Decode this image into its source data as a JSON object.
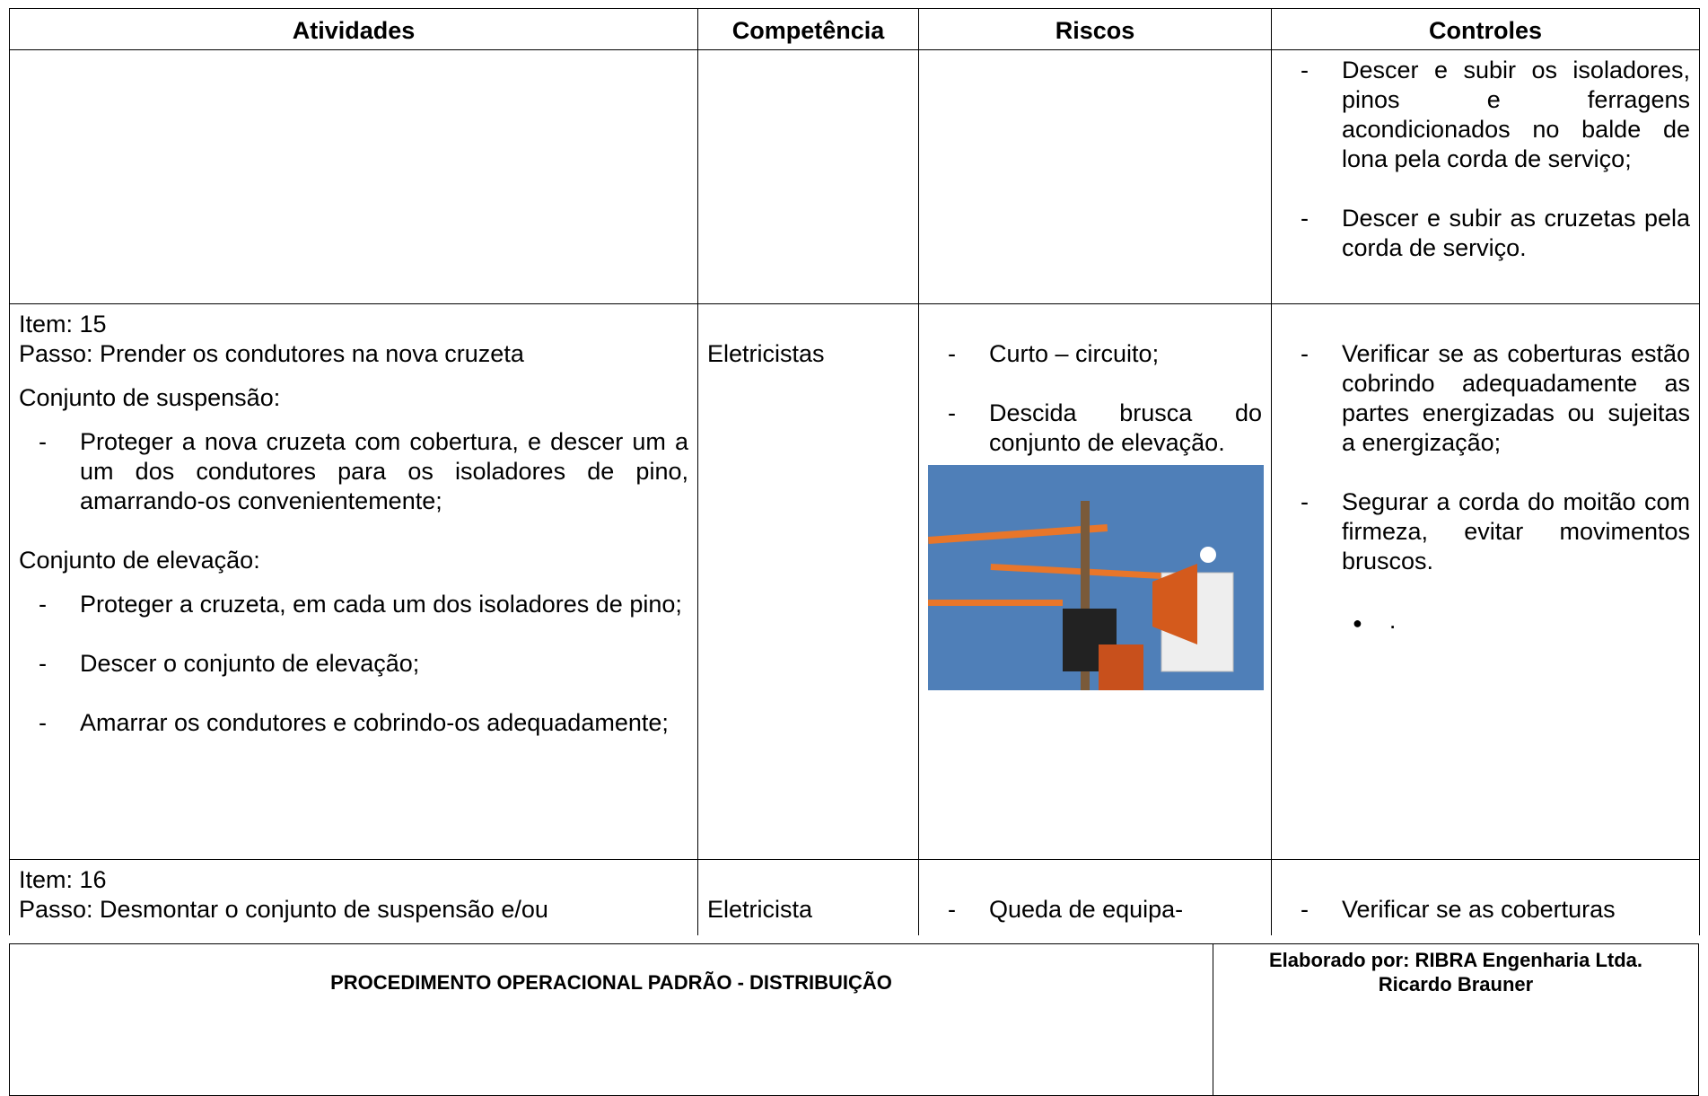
{
  "table": {
    "header": [
      "Atividades",
      "Competência",
      "Riscos",
      "Controles"
    ],
    "rows": [
      {
        "controles": [
          "Descer e subir os isoladores, pinos e ferragens acondicionados no balde de lona pela corda de serviço;",
          "Descer e subir as cruzetas pela corda de serviço."
        ]
      },
      {
        "item": "Item: 15",
        "passo": "Passo: Prender os condutores na nova cruzeta",
        "sections": [
          {
            "heading": "Conjunto de suspensão:",
            "bullets": [
              "Proteger a nova cruzeta com cobertura, e descer um a um dos condutores para os isoladores de pino, amarrando-os convenientemente;"
            ]
          },
          {
            "heading": "Conjunto de elevação:",
            "bullets": [
              "Proteger a cruzeta, em cada um dos isoladores de pino;",
              "Descer o conjunto de elevação;",
              "Amarrar os condutores e cobrindo-os adequadamente;"
            ]
          }
        ],
        "competencia": "Eletricistas",
        "riscos": [
          "Curto – circuito;",
          "Descida brusca do conjunto de elevação."
        ],
        "controles": [
          "Verificar se as coberturas estão cobrindo adequadamente as partes energizadas ou sujeitas a energização;",
          "Segurar a corda do moitão com firmeza, evitar movimentos bruscos."
        ],
        "controles_extra": "."
      },
      {
        "item": "Item: 16",
        "passo": "Passo: Desmontar o conjunto de suspensão e/ou",
        "competencia": "Eletricista",
        "riscos": [
          "Queda de equipa-"
        ],
        "controles": [
          "Verificar se as coberturas"
        ]
      }
    ]
  },
  "footer": {
    "title": "PROCEDIMENTO OPERACIONAL PADRÃO - DISTRIBUIÇÃO",
    "author": "Elaborado por: RIBRA Engenharia Ltda.",
    "name": "Ricardo Brauner"
  }
}
